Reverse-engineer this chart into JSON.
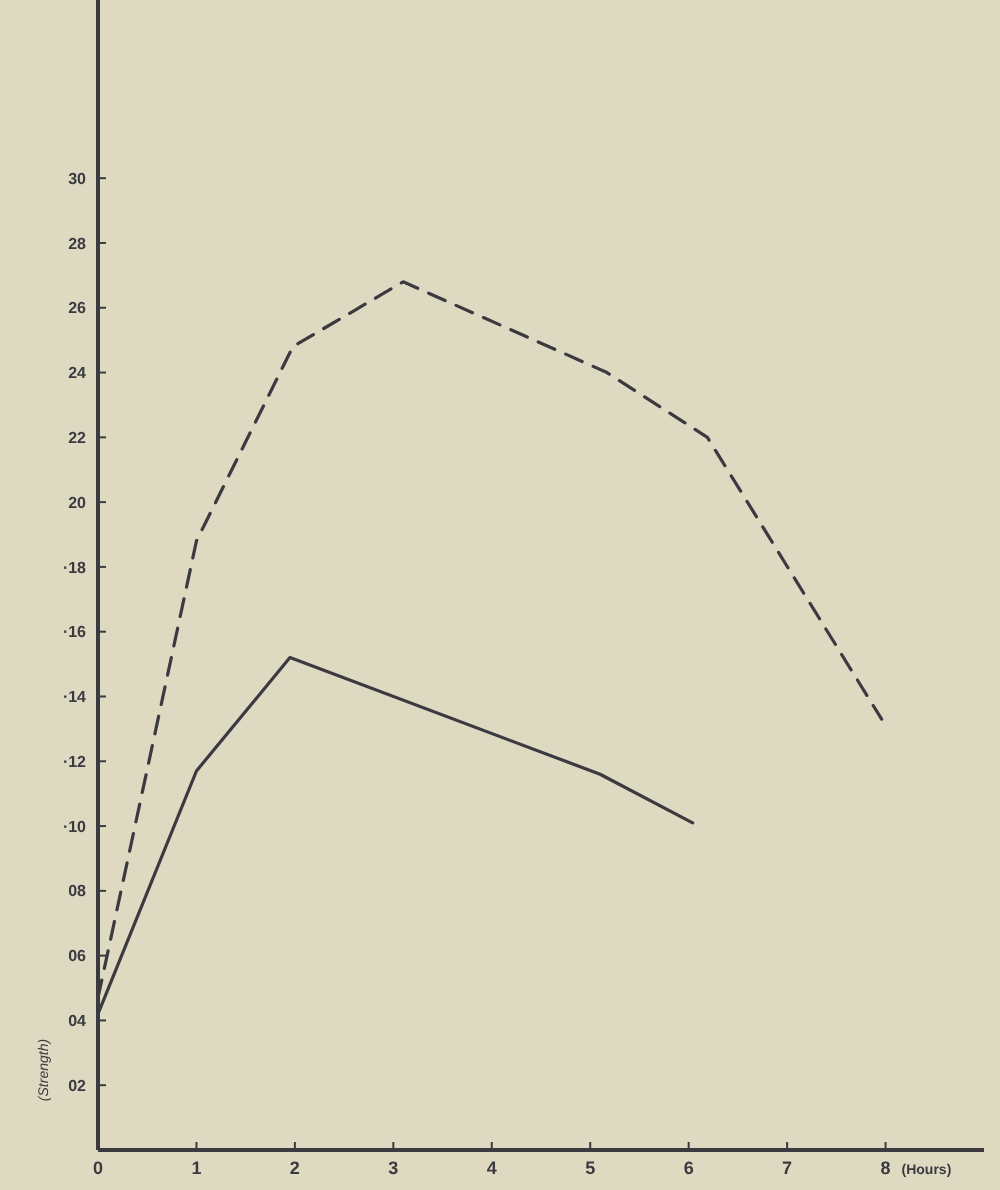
{
  "chart_data": {
    "type": "line",
    "xlabel": "(Hours)",
    "ylabel": "(Strength)",
    "xlim": [
      0,
      9
    ],
    "xticks": [
      0,
      1,
      2,
      3,
      4,
      5,
      6,
      7,
      8
    ],
    "ylim": [
      0,
      35.5
    ],
    "yticks": [
      {
        "value": 2,
        "label": "02"
      },
      {
        "value": 4,
        "label": "04"
      },
      {
        "value": 6,
        "label": "06"
      },
      {
        "value": 8,
        "label": "08"
      },
      {
        "value": 10,
        "label": "·10"
      },
      {
        "value": 12,
        "label": "·12"
      },
      {
        "value": 14,
        "label": "·14"
      },
      {
        "value": 16,
        "label": "·16"
      },
      {
        "value": 18,
        "label": "·18"
      },
      20,
      22,
      24,
      26,
      28,
      30
    ],
    "grid": false,
    "marker": "none",
    "series": [
      {
        "color": "#3a3a40",
        "line_style": "solid",
        "x": [
          0,
          1,
          1.95,
          5.1,
          6.04
        ],
        "values": [
          4.2,
          11.7,
          15.2,
          11.6,
          10.1
        ]
      },
      {
        "color": "#3a3a40",
        "line_style": "dashed",
        "x": [
          0,
          1,
          1.98,
          3.1,
          5.17,
          6.19,
          7.96
        ],
        "values": [
          4.7,
          18.8,
          24.8,
          26.8,
          24,
          22,
          13.3
        ]
      }
    ]
  }
}
